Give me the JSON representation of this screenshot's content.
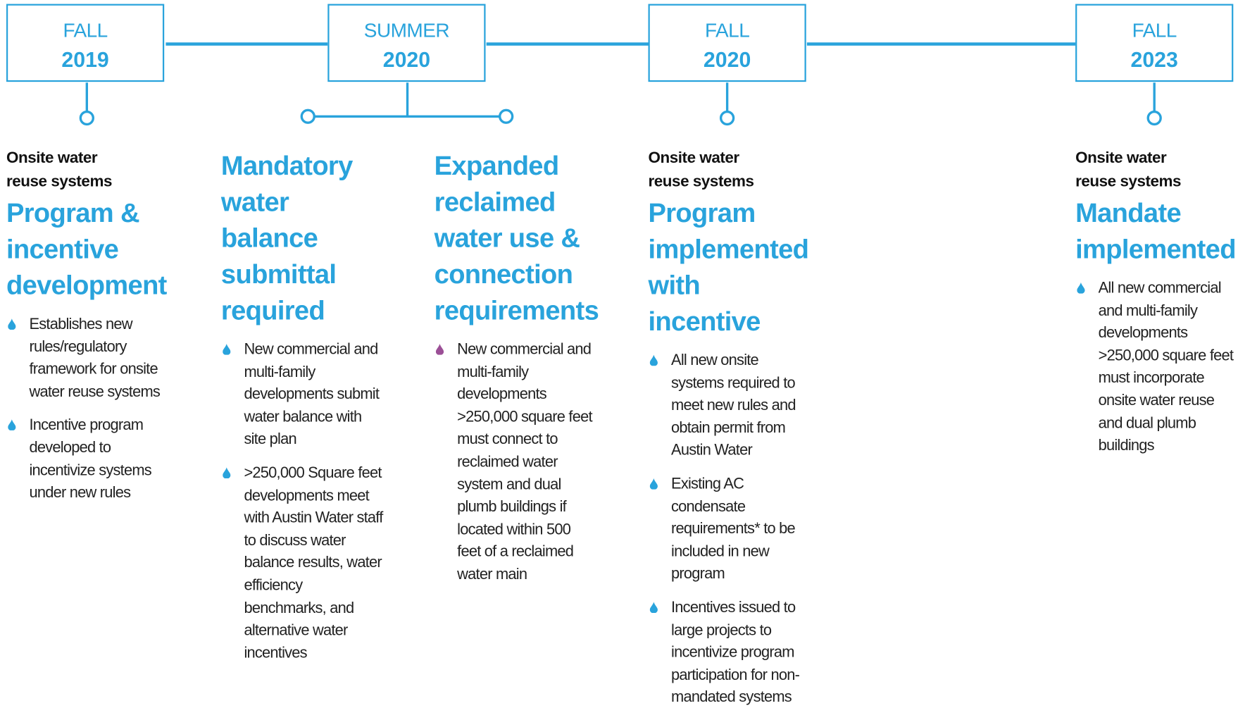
{
  "timeline": {
    "periods": [
      {
        "season": "FALL",
        "year": "2019"
      },
      {
        "season": "SUMMER",
        "year": "2020"
      },
      {
        "season": "FALL",
        "year": "2020"
      },
      {
        "season": "FALL",
        "year": "2023"
      }
    ],
    "items": [
      {
        "subtitle": "Onsite water reuse systems",
        "heading": "Program & incentive development",
        "bullet_color": "#29a3dc",
        "bullets": [
          "Establishes new rules/regulatory framework for onsite water reuse systems",
          "Incentive program developed to incentivize systems under new rules"
        ]
      },
      {
        "heading": "Mandatory water balance submittal required",
        "bullet_color": "#29a3dc",
        "bullets": [
          "New commercial and multi-family developments submit water balance with site plan",
          ">250,000 Square feet developments meet with Austin Water staff to discuss water balance results, water efficiency benchmarks, and alternative water incentives"
        ]
      },
      {
        "heading": "Expanded reclaimed water use & connection requirements",
        "bullet_color": "#9b4f96",
        "bullets": [
          "New commercial and multi-family developments >250,000 square feet must connect to reclaimed water system and dual plumb buildings if located within 500 feet of a reclaimed water main"
        ]
      },
      {
        "subtitle": "Onsite water reuse systems",
        "heading": "Program implemented with incentive",
        "bullet_color": "#29a3dc",
        "bullets": [
          "All new onsite systems required to meet new rules and obtain permit from Austin Water",
          "Existing AC condensate requirements* to be included in new program",
          "Incentives issued to large projects to incentivize program participation for non-mandated systems"
        ]
      },
      {
        "subtitle": "Onsite water reuse systems",
        "heading": "Mandate implemented",
        "bullet_color": "#29a3dc",
        "bullets": [
          "All new commercial and multi-family developments >250,000 square feet must incorporate onsite water reuse and dual plumb buildings"
        ]
      }
    ]
  }
}
